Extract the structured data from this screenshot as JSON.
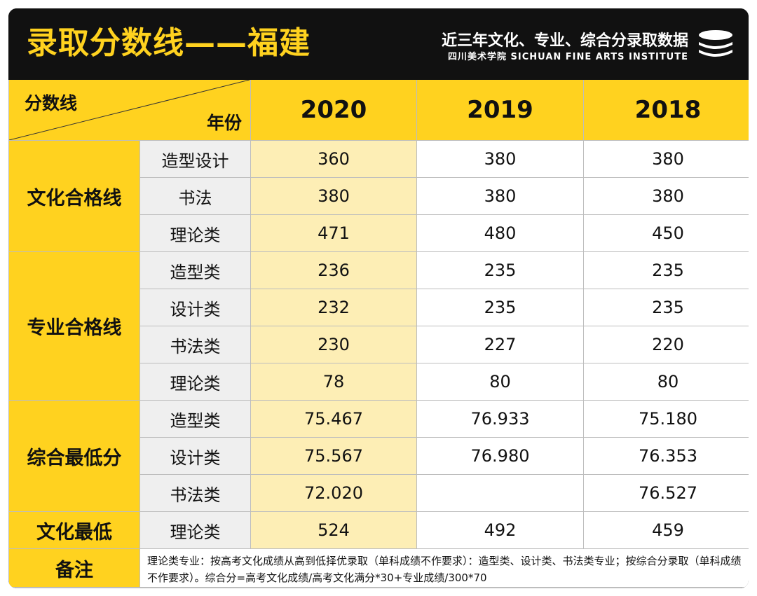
{
  "header": {
    "title": "录取分数线——福建",
    "subtitle": "近三年文化、专业、综合分录取数据",
    "institute": "四川美术学院 SICHUAN FINE ARTS INSTITUTE",
    "logo_icon": "stacked-discs-icon"
  },
  "colors": {
    "yellow": "#ffd21f",
    "light_yellow": "#fdeeb5",
    "dark": "#111111",
    "gray": "#efefef"
  },
  "table": {
    "corner_top": "分数线",
    "corner_bottom": "年份",
    "years": [
      "2020",
      "2019",
      "2018"
    ],
    "groups": [
      {
        "name": "文化合格线",
        "rows": [
          {
            "label": "造型设计",
            "values": [
              "360",
              "380",
              "380"
            ]
          },
          {
            "label": "书法",
            "values": [
              "380",
              "380",
              "380"
            ]
          },
          {
            "label": "理论类",
            "values": [
              "471",
              "480",
              "450"
            ]
          }
        ]
      },
      {
        "name": "专业合格线",
        "rows": [
          {
            "label": "造型类",
            "values": [
              "236",
              "235",
              "235"
            ]
          },
          {
            "label": "设计类",
            "values": [
              "232",
              "235",
              "235"
            ]
          },
          {
            "label": "书法类",
            "values": [
              "230",
              "227",
              "220"
            ]
          },
          {
            "label": "理论类",
            "values": [
              "78",
              "80",
              "80"
            ]
          }
        ]
      },
      {
        "name": "综合最低分",
        "rows": [
          {
            "label": "造型类",
            "values": [
              "75.467",
              "76.933",
              "75.180"
            ]
          },
          {
            "label": "设计类",
            "values": [
              "75.567",
              "76.980",
              "76.353"
            ]
          },
          {
            "label": "书法类",
            "values": [
              "72.020",
              "",
              "76.527"
            ]
          }
        ]
      },
      {
        "name": "文化最低",
        "rows": [
          {
            "label": "理论类",
            "values": [
              "524",
              "492",
              "459"
            ]
          }
        ]
      }
    ],
    "note_label": "备注",
    "note_text": "理论类专业：按高考文化成绩从高到低择优录取（单科成绩不作要求）：造型类、设计类、书法类专业；按综合分录取（单科成绩不作要求）。综合分=高考文化成绩/高考文化满分*30+专业成绩/300*70"
  }
}
